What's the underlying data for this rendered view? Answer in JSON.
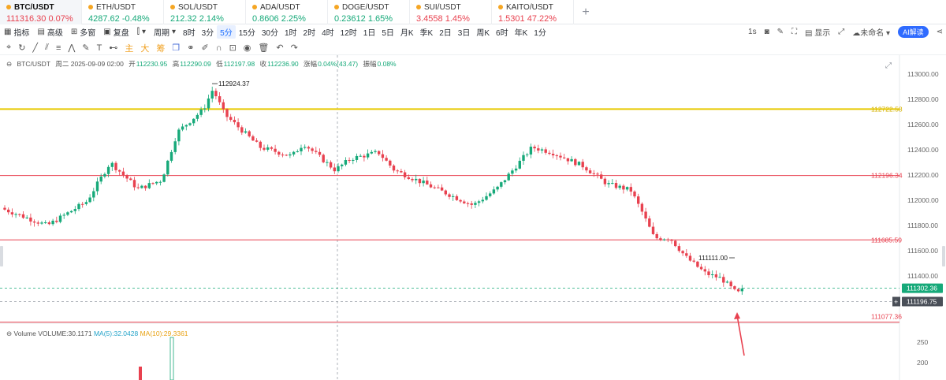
{
  "tabs": [
    {
      "symbol": "BTC/USDT",
      "price": "111316.30",
      "change": "0.07%",
      "dir": "down"
    },
    {
      "symbol": "ETH/USDT",
      "price": "4287.62",
      "change": "-0.48%",
      "dir": "up"
    },
    {
      "symbol": "SOL/USDT",
      "price": "212.32",
      "change": "2.14%",
      "dir": "up"
    },
    {
      "symbol": "ADA/USDT",
      "price": "0.8606",
      "change": "2.25%",
      "dir": "up"
    },
    {
      "symbol": "DOGE/USDT",
      "price": "0.23612",
      "change": "1.65%",
      "dir": "up"
    },
    {
      "symbol": "SUI/USDT",
      "price": "3.4558",
      "change": "1.45%",
      "dir": "down"
    },
    {
      "symbol": "KAITO/USDT",
      "price": "1.5301",
      "change": "47.22%",
      "dir": "down"
    }
  ],
  "toolbar": {
    "indicators": "指标",
    "template": "高级",
    "multi": "多窗",
    "replay": "复盘",
    "period_label": "周期",
    "periods": [
      "8时",
      "3分",
      "5分",
      "15分",
      "30分",
      "1时",
      "2时",
      "4时",
      "12时",
      "1日",
      "5日",
      "月K",
      "季K",
      "2日",
      "3日",
      "周K",
      "6时",
      "年K",
      "1分"
    ],
    "selected_period": "5分",
    "interval": "1s",
    "display": "显示",
    "layout_name": "未命名",
    "ai": "AI解读"
  },
  "drawing_tools": [
    "主",
    "大",
    "筹"
  ],
  "info": {
    "symbol": "BTC/USDT",
    "datetime": "周二 2025-09-09 02:00",
    "open_label": "开",
    "open": "112230.95",
    "high_label": "高",
    "high": "112290.09",
    "low_label": "低",
    "low": "112197.98",
    "close_label": "收",
    "close": "112236.90",
    "change_label": "涨幅",
    "change": "0.04%(43.47)",
    "amp_label": "振幅",
    "amp": "0.08%"
  },
  "volume_info": {
    "label": "Volume",
    "volume": "VOLUME:30.1171",
    "ma5": "MA(5):32.0428",
    "ma10": "MA(10):29.3361"
  },
  "price_axis": {
    "ticks": [
      "113000.00",
      "112800.00",
      "112600.00",
      "112400.00",
      "112200.00",
      "112000.00",
      "111800.00",
      "111600.00",
      "111400.00"
    ],
    "volume_ticks": [
      "250",
      "200"
    ]
  },
  "levels": [
    {
      "label": "112722.58",
      "color": "#e8c900"
    },
    {
      "label": "112196.34",
      "color": "#e8414f"
    },
    {
      "label": "111685.59",
      "color": "#e8414f"
    },
    {
      "label": "111077.36",
      "color": "#e8414f"
    }
  ],
  "markers": {
    "last_price": "111302.36",
    "crosshair_price": "111196.75",
    "high_mark": "112924.37",
    "low_mark": "111111.00"
  },
  "colors": {
    "up": "#16a979",
    "down": "#e8414f",
    "accent": "#2f6bff",
    "yellow_level": "#e8c900"
  }
}
